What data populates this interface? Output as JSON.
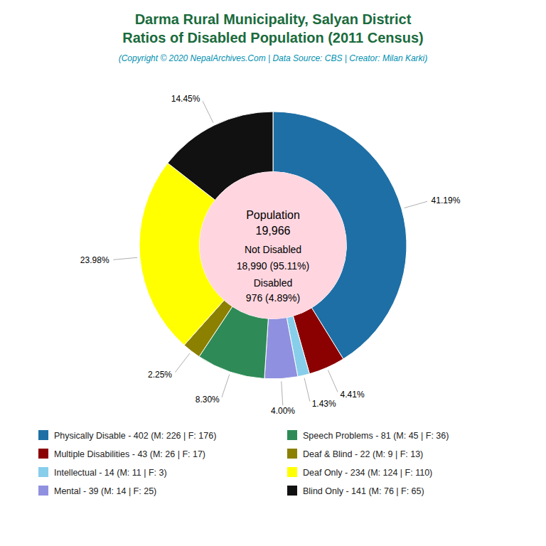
{
  "chart_data": {
    "type": "donut",
    "title": [
      "Darma Rural Municipality, Salyan District",
      "Ratios of Disabled Population (2011 Census)"
    ],
    "subtitle": "(Copyright © 2020 NepalArchives.Com | Data Source: CBS | Creator: Milan Karki)",
    "categories": [
      "Physically Disable - 402 (M: 226 | F: 176)",
      "Multiple Disabilities - 43 (M: 26 | F: 17)",
      "Intellectual - 14 (M: 11 | F: 3)",
      "Mental - 39 (M: 14 | F: 25)",
      "Speech Problems - 81 (M: 45 | F: 36)",
      "Deaf & Blind - 22 (M: 9 | F: 13)",
      "Deaf Only - 234 (M: 124 | F: 110)",
      "Blind Only - 141 (M: 76 | F: 65)"
    ],
    "values": [
      41.19,
      4.41,
      1.43,
      4.0,
      8.3,
      2.25,
      23.98,
      14.45
    ],
    "value_labels": [
      "41.19%",
      "4.41%",
      "1.43%",
      "4.00%",
      "8.30%",
      "2.25%",
      "23.98%",
      "14.45%"
    ],
    "colors": [
      "#1e6fa5",
      "#8b0000",
      "#87ceeb",
      "#9090e0",
      "#2e8b57",
      "#8b8000",
      "#ffff00",
      "#111111"
    ],
    "annotations": [
      "Population",
      "19,966",
      "Not Disabled",
      "18,990 (95.11%)",
      "Disabled",
      "976 (4.89%)"
    ],
    "data_labels": true,
    "legend": "bottom"
  }
}
